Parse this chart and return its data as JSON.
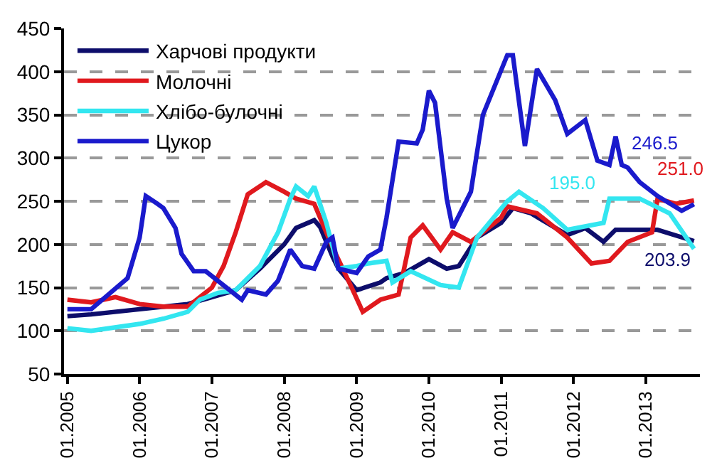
{
  "chart_data": {
    "type": "line",
    "xlim": [
      "2004-12-15",
      "2013-10-01"
    ],
    "xticks": [
      {
        "value": "2005-01-01",
        "label": "01.2005"
      },
      {
        "value": "2006-01-01",
        "label": "01.2006"
      },
      {
        "value": "2007-01-01",
        "label": "01.2007"
      },
      {
        "value": "2008-01-01",
        "label": "01.2008"
      },
      {
        "value": "2009-01-01",
        "label": "01.2009"
      },
      {
        "value": "2010-01-01",
        "label": "01.2010"
      },
      {
        "value": "2011-01-01",
        "label": "01.2011"
      },
      {
        "value": "2012-01-01",
        "label": "01.2012"
      },
      {
        "value": "2013-01-01",
        "label": "01.2013"
      }
    ],
    "ylim": [
      50,
      450
    ],
    "yticks": [
      50,
      100,
      150,
      200,
      250,
      300,
      350,
      400,
      450
    ],
    "grid": "y",
    "legend": "top left",
    "marker": "none",
    "line_style": "solid",
    "series": [
      {
        "name": "Харчові продукти",
        "color": "#0d0d6b",
        "x": [
          "2005-01",
          "2005-05",
          "2006-01",
          "2006-09",
          "2007-01",
          "2007-05",
          "2007-09",
          "2008-01",
          "2008-03",
          "2008-06",
          "2008-07",
          "2008-09",
          "2008-10",
          "2009-01",
          "2009-05",
          "2009-06",
          "2009-09",
          "2010-01",
          "2010-04",
          "2010-06",
          "2010-09",
          "2011-01",
          "2011-03",
          "2011-06",
          "2011-12",
          "2012-03",
          "2012-06",
          "2012-08",
          "2013-03",
          "2013-09"
        ],
        "values": [
          117,
          119,
          125,
          131,
          139,
          147,
          172,
          200,
          219,
          228,
          220,
          186,
          172,
          147,
          156,
          161,
          167,
          183,
          172,
          175,
          208,
          225,
          242,
          236,
          211,
          219,
          203,
          217,
          217,
          203.9
        ]
      },
      {
        "name": "Молочні",
        "color": "#e0191e",
        "x": [
          "2005-01",
          "2005-05",
          "2005-09",
          "2006-01",
          "2006-05",
          "2006-09",
          "2007-01",
          "2007-03",
          "2007-05",
          "2007-07",
          "2007-10",
          "2008-01",
          "2008-03",
          "2008-06",
          "2008-09",
          "2008-12",
          "2009-02",
          "2009-05",
          "2009-08",
          "2009-10",
          "2009-12",
          "2010-03",
          "2010-05",
          "2010-08",
          "2011-01",
          "2011-02",
          "2011-07",
          "2011-12",
          "2012-04",
          "2012-07",
          "2012-10",
          "2013-02",
          "2013-03",
          "2013-06",
          "2013-09"
        ],
        "values": [
          136,
          133,
          139,
          131,
          128,
          128,
          150,
          175,
          214,
          258,
          272,
          261,
          253,
          247,
          197,
          153,
          122,
          136,
          142,
          208,
          222,
          194,
          214,
          203,
          231,
          244,
          236,
          208,
          178,
          181,
          203,
          214,
          253,
          247,
          251.0
        ]
      },
      {
        "name": "Хлібо-булочні",
        "color": "#33e6f0",
        "x": [
          "2005-01",
          "2005-05",
          "2006-01",
          "2006-05",
          "2006-09",
          "2006-11",
          "2007-02",
          "2007-05",
          "2007-09",
          "2007-12",
          "2008-02",
          "2008-03",
          "2008-05",
          "2008-06",
          "2008-08",
          "2008-10",
          "2009-01",
          "2009-03",
          "2009-06",
          "2009-07",
          "2009-10",
          "2010-03",
          "2010-06",
          "2010-09",
          "2011-02",
          "2011-04",
          "2011-08",
          "2011-12",
          "2012-06",
          "2012-07",
          "2012-12",
          "2013-05",
          "2013-09"
        ],
        "values": [
          103,
          100,
          108,
          114,
          122,
          136,
          144,
          147,
          175,
          214,
          253,
          267,
          256,
          267,
          225,
          172,
          175,
          178,
          181,
          156,
          169,
          153,
          150,
          208,
          250,
          261,
          242,
          217,
          225,
          253,
          253,
          236,
          195.0
        ]
      },
      {
        "name": "Цукор",
        "color": "#1a1acc",
        "x": [
          "2005-01",
          "2005-05",
          "2005-11",
          "2006-01",
          "2006-02",
          "2006-04",
          "2006-05",
          "2006-07",
          "2006-08",
          "2006-10",
          "2006-12",
          "2007-06",
          "2007-07",
          "2007-10",
          "2007-12",
          "2008-02",
          "2008-04",
          "2008-06",
          "2008-08",
          "2008-09",
          "2008-10",
          "2009-01",
          "2009-03",
          "2009-05",
          "2009-06",
          "2009-08",
          "2009-11",
          "2009-12",
          "2010-01",
          "2010-02",
          "2010-04",
          "2010-05",
          "2010-08",
          "2010-10",
          "2011-02",
          "2011-03",
          "2011-05",
          "2011-07",
          "2011-10",
          "2011-12",
          "2012-03",
          "2012-05",
          "2012-07",
          "2012-08",
          "2012-09",
          "2012-10",
          "2012-12",
          "2013-03",
          "2013-07",
          "2013-09"
        ],
        "values": [
          125,
          125,
          161,
          208,
          256,
          247,
          242,
          219,
          189,
          169,
          169,
          136,
          147,
          142,
          158,
          194,
          175,
          172,
          203,
          208,
          172,
          167,
          186,
          194,
          231,
          319,
          317,
          333,
          378,
          364,
          253,
          219,
          261,
          350,
          419,
          419,
          314,
          403,
          367,
          328,
          344,
          297,
          292,
          325,
          292,
          289,
          272,
          256,
          239,
          246.5
        ]
      }
    ],
    "annotations": [
      "203.9",
      "251.0",
      "195.0",
      "246.5"
    ]
  }
}
